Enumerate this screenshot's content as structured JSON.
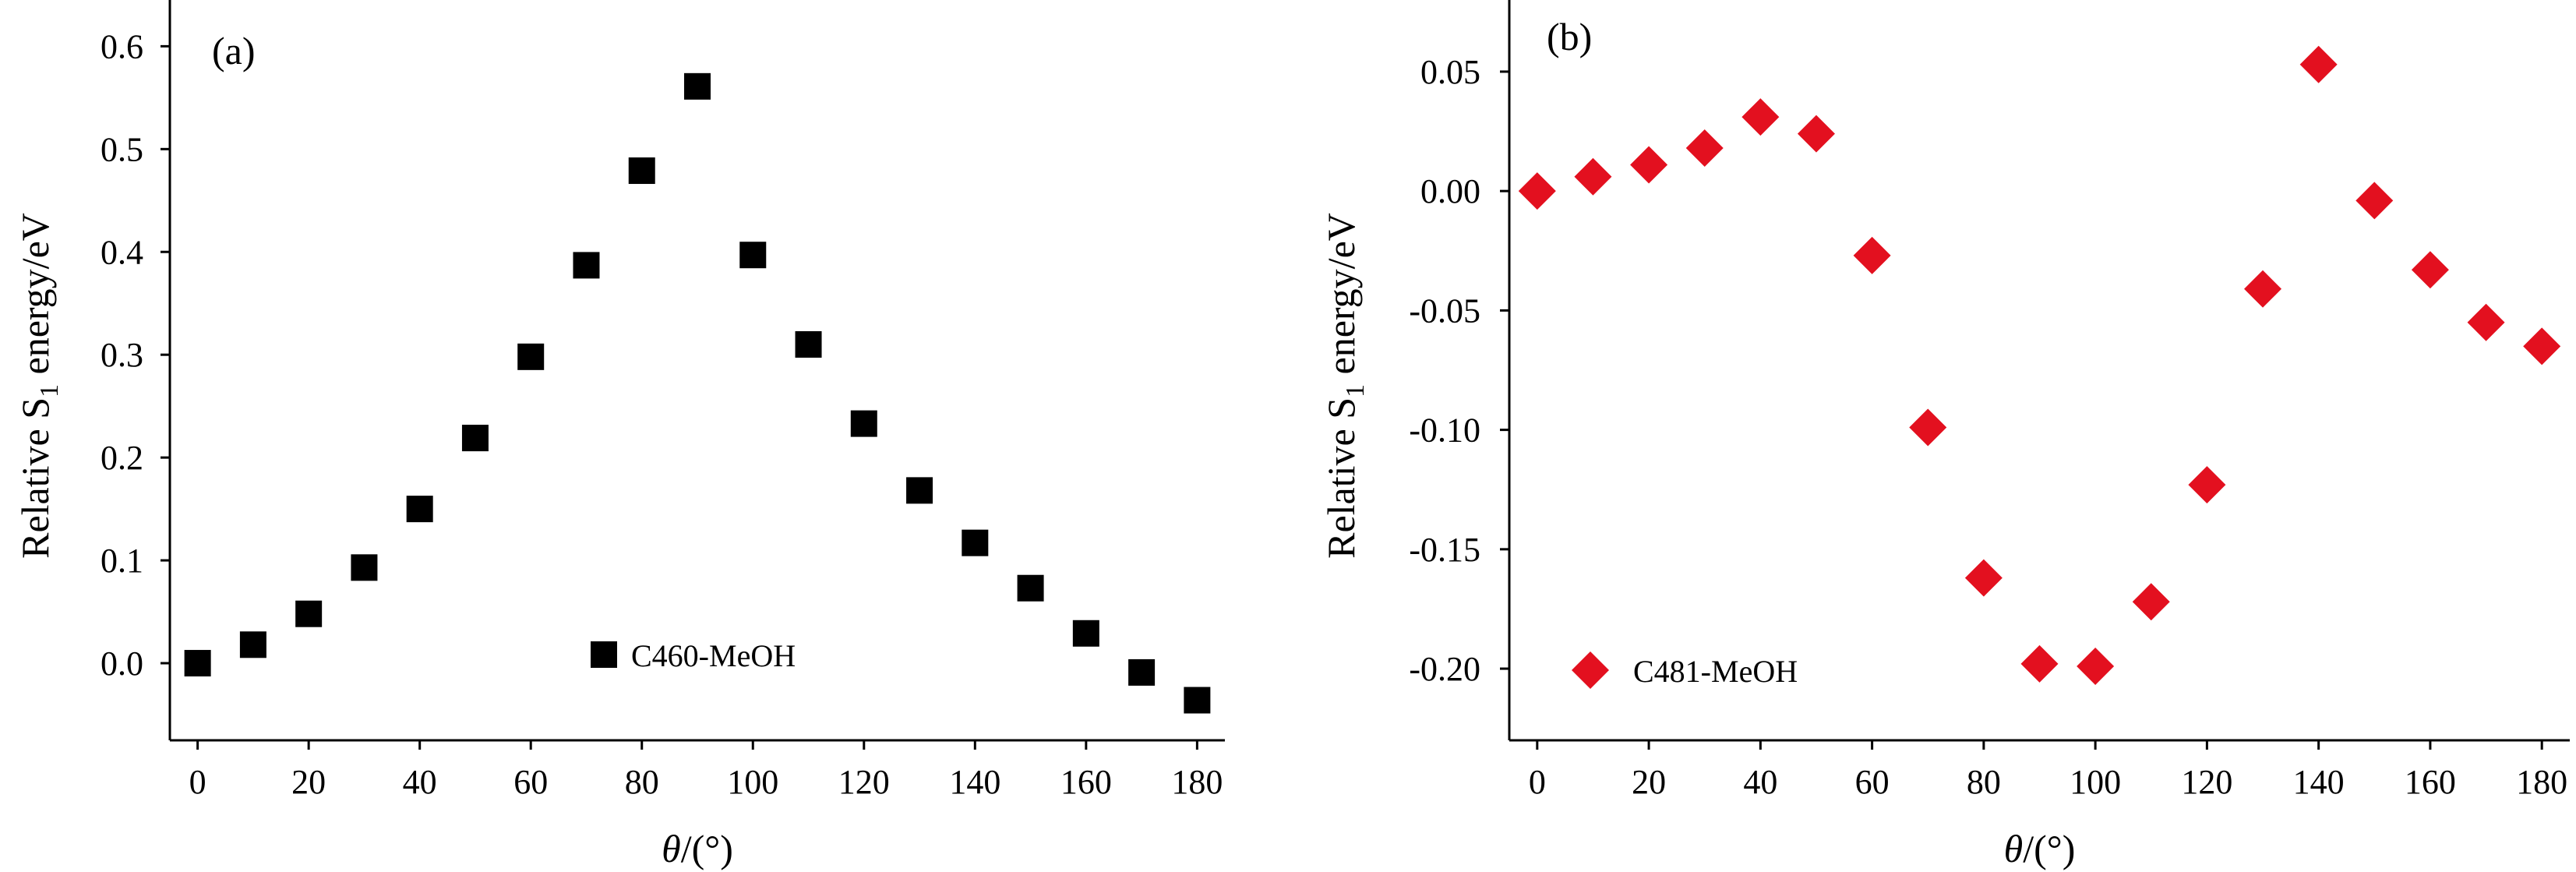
{
  "chart_data": [
    {
      "type": "scatter",
      "panel_label": "(a)",
      "xlabel": {
        "var": "θ",
        "unit": "/(°)"
      },
      "ylabel": {
        "main": "Relative S",
        "subscript": "1",
        "rest": " energy/eV"
      },
      "xlim": [
        -5,
        185
      ],
      "ylim": [
        -0.075,
        0.645
      ],
      "x_ticks": [
        0,
        20,
        40,
        60,
        80,
        100,
        120,
        140,
        160,
        180
      ],
      "y_ticks": [
        0.0,
        0.1,
        0.2,
        0.3,
        0.4,
        0.5,
        0.6
      ],
      "y_tick_labels": [
        "0.0",
        "0.1",
        "0.2",
        "0.3",
        "0.4",
        "0.5",
        "0.6"
      ],
      "legend_position": "bottom-center",
      "series": [
        {
          "name": "C460-MeOH",
          "marker": "square",
          "color": "#000000",
          "x": [
            0,
            10,
            20,
            30,
            40,
            50,
            60,
            70,
            80,
            90,
            100,
            110,
            120,
            130,
            140,
            150,
            160,
            170,
            180
          ],
          "y": [
            0.0,
            0.018,
            0.048,
            0.093,
            0.15,
            0.219,
            0.298,
            0.387,
            0.479,
            0.561,
            0.397,
            0.31,
            0.233,
            0.168,
            0.117,
            0.073,
            0.029,
            -0.009,
            -0.036
          ]
        }
      ]
    },
    {
      "type": "scatter",
      "panel_label": "(b)",
      "xlabel": {
        "var": "θ",
        "unit": "/(°)"
      },
      "ylabel": {
        "main": "Relative S",
        "subscript": "1",
        "rest": " energy/eV"
      },
      "xlim": [
        -5,
        185
      ],
      "ylim": [
        -0.23,
        0.08
      ],
      "x_ticks": [
        0,
        20,
        40,
        60,
        80,
        100,
        120,
        140,
        160,
        180
      ],
      "y_ticks": [
        0.05,
        0.0,
        -0.05,
        -0.1,
        -0.15,
        -0.2
      ],
      "y_tick_labels": [
        "0.05",
        "0.00",
        "-0.05",
        "-0.10",
        "-0.15",
        "-0.20"
      ],
      "legend_position": "bottom-left",
      "series": [
        {
          "name": "C481-MeOH",
          "marker": "diamond",
          "color": "#e3101f",
          "x": [
            0,
            10,
            20,
            30,
            40,
            50,
            60,
            70,
            80,
            90,
            100,
            110,
            120,
            130,
            140,
            150,
            160,
            170,
            180
          ],
          "y": [
            0.0,
            0.006,
            0.011,
            0.018,
            0.031,
            0.024,
            -0.027,
            -0.099,
            -0.162,
            -0.198,
            -0.199,
            -0.172,
            -0.123,
            -0.041,
            0.053,
            -0.004,
            -0.033,
            -0.055,
            -0.065
          ]
        }
      ]
    }
  ]
}
